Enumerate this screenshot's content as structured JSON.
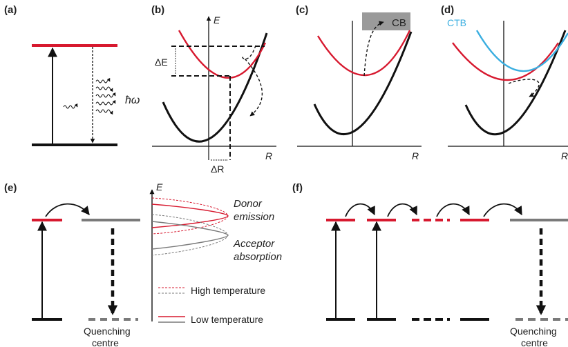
{
  "panels": {
    "a": "(a)",
    "b": "(b)",
    "c": "(c)",
    "d": "(d)",
    "e": "(e)",
    "f": "(f)"
  },
  "axes": {
    "energy": "E",
    "coordinate": "R"
  },
  "labels": {
    "photon": "ħω",
    "delta_e": "ΔE",
    "delta_r": "ΔR",
    "cb": "CB",
    "ctb": "CTB",
    "donor_emission_1": "Donor",
    "donor_emission_2": "emission",
    "acceptor_absorption_1": "Acceptor",
    "acceptor_absorption_2": "absorption",
    "quenching_1": "Quenching",
    "quenching_2": "centre"
  },
  "legend": {
    "high_temperature": "High temperature",
    "low_temperature": "Low temperature"
  },
  "colors": {
    "excited": "#d7192f",
    "ground": "#111111",
    "charge_transfer": "#3aaee0",
    "quenching": "#7a7a7a",
    "conduction_band": "#9a9a9a"
  }
}
